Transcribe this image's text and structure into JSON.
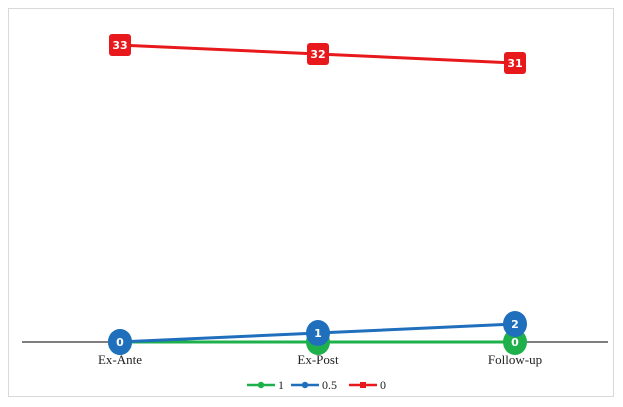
{
  "chart_data": {
    "type": "line",
    "categories": [
      "Ex-Ante",
      "Ex-Post",
      "Follow-up"
    ],
    "ylim": [
      0,
      34
    ],
    "grid": false,
    "legend_position": "bottom",
    "series": [
      {
        "name": "1",
        "values": [
          0,
          0,
          0
        ],
        "color": "#1db04b",
        "marker": "circle"
      },
      {
        "name": "0.5",
        "values": [
          0,
          1,
          2
        ],
        "color": "#1f6fbd",
        "marker": "circle"
      },
      {
        "name": "0",
        "values": [
          33,
          32,
          31
        ],
        "color": "#e8191c",
        "marker": "square"
      }
    ]
  }
}
